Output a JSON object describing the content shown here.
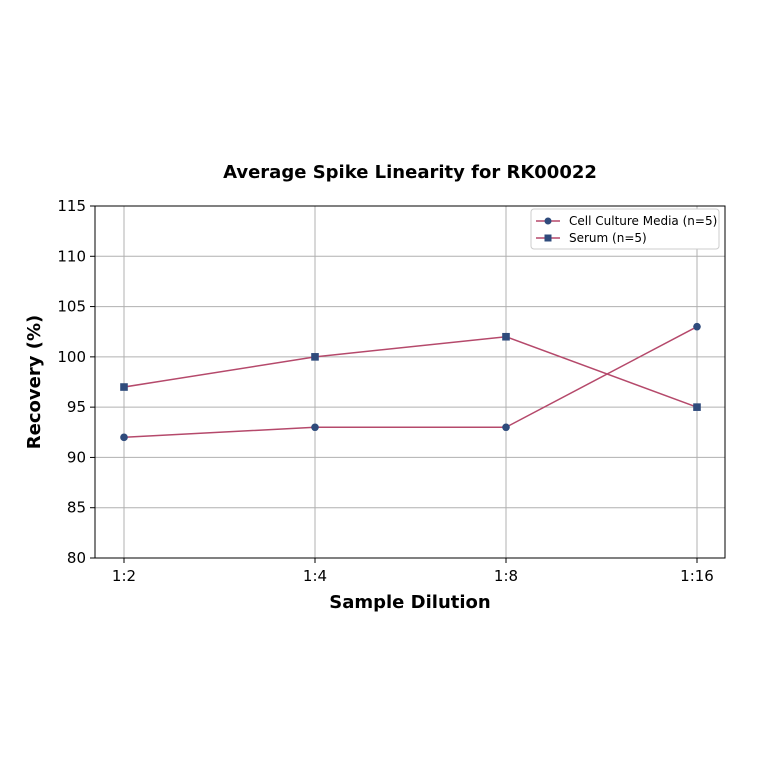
{
  "chart_data": {
    "type": "line",
    "title": "Average Spike Linearity for RK00022",
    "xlabel": "Sample Dilution",
    "ylabel": "Recovery (%)",
    "categories": [
      "1:2",
      "1:4",
      "1:8",
      "1:16"
    ],
    "ylim": [
      80,
      115
    ],
    "yticks": [
      80,
      85,
      90,
      95,
      100,
      105,
      110,
      115
    ],
    "grid": true,
    "legend_position": "upper right",
    "series": [
      {
        "name": "Cell Culture Media (n=5)",
        "marker": "circle",
        "values": [
          92,
          93,
          93,
          103
        ]
      },
      {
        "name": "Serum (n=5)",
        "marker": "square",
        "values": [
          97,
          100,
          102,
          95
        ]
      }
    ]
  },
  "colors": {
    "line": "#b5496b",
    "marker": "#2f4b7c",
    "grid": "#b0b0b0",
    "axis": "#000000"
  }
}
